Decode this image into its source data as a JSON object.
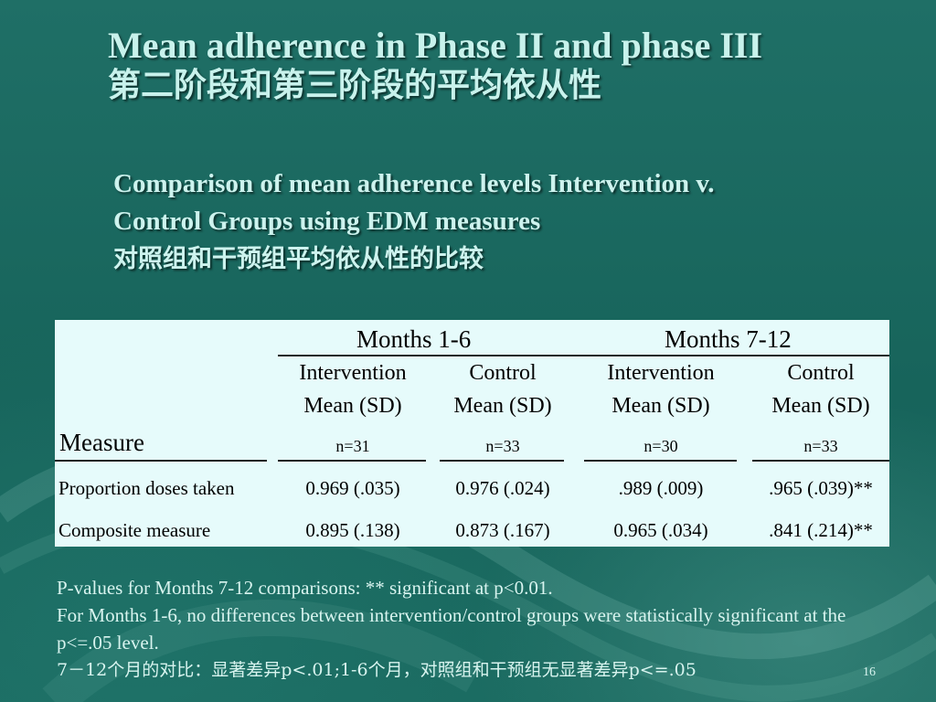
{
  "slide": {
    "title_en": "Mean adherence in Phase II and phase III",
    "title_cn": "第二阶段和第三阶段的平均依从性",
    "subtitle_line1": "Comparison of mean adherence levels Intervention v.",
    "subtitle_line2": "Control Groups using EDM measures",
    "subtitle_cn": "对照组和干预组平均依从性的比较",
    "page_number": "16"
  },
  "table": {
    "periods": [
      "Months 1-6",
      "Months 7-12"
    ],
    "measure_header": "Measure",
    "groups": [
      {
        "name": "Intervention",
        "stat": "Mean (SD)",
        "n": "n=31"
      },
      {
        "name": "Control",
        "stat": "Mean (SD)",
        "n": "n=33"
      },
      {
        "name": "Intervention",
        "stat": "Mean (SD)",
        "n": "n=30"
      },
      {
        "name": "Control",
        "stat": "Mean (SD)",
        "n": "n=33"
      }
    ],
    "rows": [
      {
        "label": "Proportion doses taken",
        "values": [
          "0.969 (.035)",
          "0.976 (.024)",
          ".989 (.009)",
          ".965 (.039)**"
        ]
      },
      {
        "label": "Composite measure",
        "values": [
          "0.895 (.138)",
          "0.873 (.167)",
          "0.965 (.034)",
          ".841 (.214)**"
        ]
      }
    ]
  },
  "notes": {
    "line1": "P-values for Months 7-12 comparisons: ** significant at p<0.01.",
    "line2": "For Months 1-6, no differences between intervention/control groups were statistically significant at the p<=.05 level.",
    "line3": "7－12个月的对比：显著差异p<.01;1-6个月，对照组和干预组无显著差异p<=.05"
  },
  "colors": {
    "background": "#1b6b62",
    "title_text": "#c8f2ec",
    "table_background": "#e6fbfb"
  }
}
